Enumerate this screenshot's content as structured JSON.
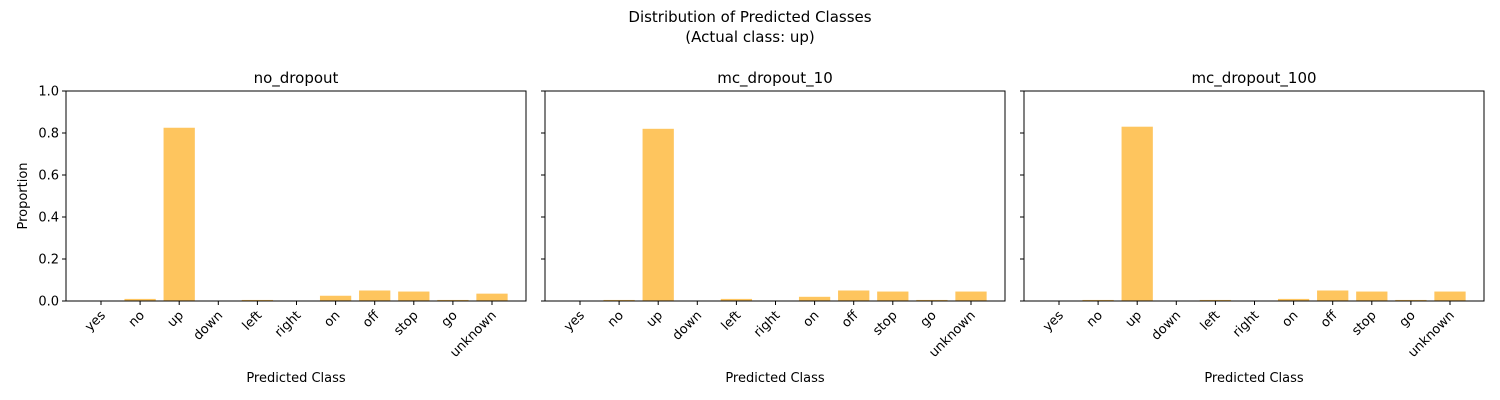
{
  "figure": {
    "title_line1": "Distribution of Predicted Classes",
    "title_line2": "(Actual class: up)",
    "bar_color": "#febf4d"
  },
  "chart_data": [
    {
      "type": "bar",
      "title": "no_dropout",
      "xlabel": "Predicted Class",
      "ylabel": "Proportion",
      "ylim": [
        0,
        1.0
      ],
      "yticks": [
        "0.0",
        "0.2",
        "0.4",
        "0.6",
        "0.8",
        "1.0"
      ],
      "categories": [
        "yes",
        "no",
        "up",
        "down",
        "left",
        "right",
        "on",
        "off",
        "stop",
        "go",
        "unknown"
      ],
      "values": [
        0.0,
        0.01,
        0.825,
        0.0,
        0.005,
        0.0,
        0.025,
        0.05,
        0.045,
        0.005,
        0.035
      ]
    },
    {
      "type": "bar",
      "title": "mc_dropout_10",
      "xlabel": "Predicted Class",
      "ylabel": "",
      "ylim": [
        0,
        1.0
      ],
      "categories": [
        "yes",
        "no",
        "up",
        "down",
        "left",
        "right",
        "on",
        "off",
        "stop",
        "go",
        "unknown"
      ],
      "values": [
        0.0,
        0.005,
        0.82,
        0.0,
        0.01,
        0.0,
        0.02,
        0.05,
        0.045,
        0.005,
        0.045
      ]
    },
    {
      "type": "bar",
      "title": "mc_dropout_100",
      "xlabel": "Predicted Class",
      "ylabel": "",
      "ylim": [
        0,
        1.0
      ],
      "categories": [
        "yes",
        "no",
        "up",
        "down",
        "left",
        "right",
        "on",
        "off",
        "stop",
        "go",
        "unknown"
      ],
      "values": [
        0.0,
        0.005,
        0.83,
        0.0,
        0.005,
        0.0,
        0.01,
        0.05,
        0.045,
        0.005,
        0.045
      ]
    }
  ]
}
